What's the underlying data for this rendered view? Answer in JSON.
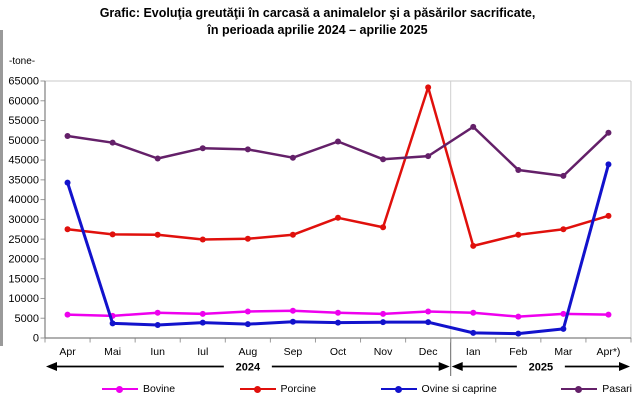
{
  "title": {
    "line1": "Grafic: Evoluţia greutăţii în carcasă a animalelor şi a păsărilor sacrificate,",
    "line2": "în perioada aprilie 2024 – aprilie 2025"
  },
  "y_axis": {
    "unit_label": "-tone-",
    "tick_labels_top_to_bottom": [
      "65000",
      "60000",
      "55000",
      "50000",
      "45000",
      "35000",
      "40000",
      "30000",
      "25000",
      "20000",
      "15000",
      "10000",
      "5000",
      "0"
    ]
  },
  "chart_data": {
    "type": "line",
    "title": "Grafic: Evoluţia greutăţii în carcasă a animalelor şi a păsărilor sacrificate, în perioada aprilie 2024 – aprilie 2025",
    "ylabel": "-tone-",
    "ylim": [
      0,
      65000
    ],
    "y_tick_step": 5000,
    "y_tick_labels_as_printed": [
      "65000",
      "60000",
      "55000",
      "50000",
      "45000",
      "35000",
      "40000",
      "30000",
      "25000",
      "20000",
      "15000",
      "10000",
      "5000",
      "0"
    ],
    "grid": "off",
    "legend_position": "bottom",
    "categories": [
      "Apr",
      "Mai",
      "Iun",
      "Iul",
      "Aug",
      "Sep",
      "Oct",
      "Nov",
      "Dec",
      "Ian",
      "Feb",
      "Mar",
      "Apr*)"
    ],
    "series": [
      {
        "name": "Bovine",
        "color": "#ee00ee",
        "values": [
          5900,
          5600,
          6400,
          6100,
          6700,
          6900,
          6400,
          6100,
          6700,
          6400,
          5400,
          6100,
          5900
        ]
      },
      {
        "name": "Porcine",
        "color": "#e0100c",
        "values": [
          27500,
          26200,
          26100,
          24900,
          25100,
          26100,
          30400,
          28000,
          63400,
          23300,
          26100,
          27500,
          30900
        ]
      },
      {
        "name": "Ovine si caprine",
        "color": "#1212cc",
        "values": [
          39300,
          3700,
          3300,
          3900,
          3500,
          4100,
          3900,
          4000,
          4000,
          1300,
          1100,
          2300,
          43900
        ]
      },
      {
        "name": "Pasari",
        "color": "#642069",
        "values": [
          51100,
          49400,
          45400,
          48000,
          47700,
          45600,
          49700,
          45200,
          46000,
          53400,
          42500,
          41000,
          51900
        ]
      }
    ],
    "year_bands": [
      {
        "label": "2024",
        "from_index": 0,
        "to_index": 8
      },
      {
        "label": "2025",
        "from_index": 9,
        "to_index": 12
      }
    ]
  }
}
